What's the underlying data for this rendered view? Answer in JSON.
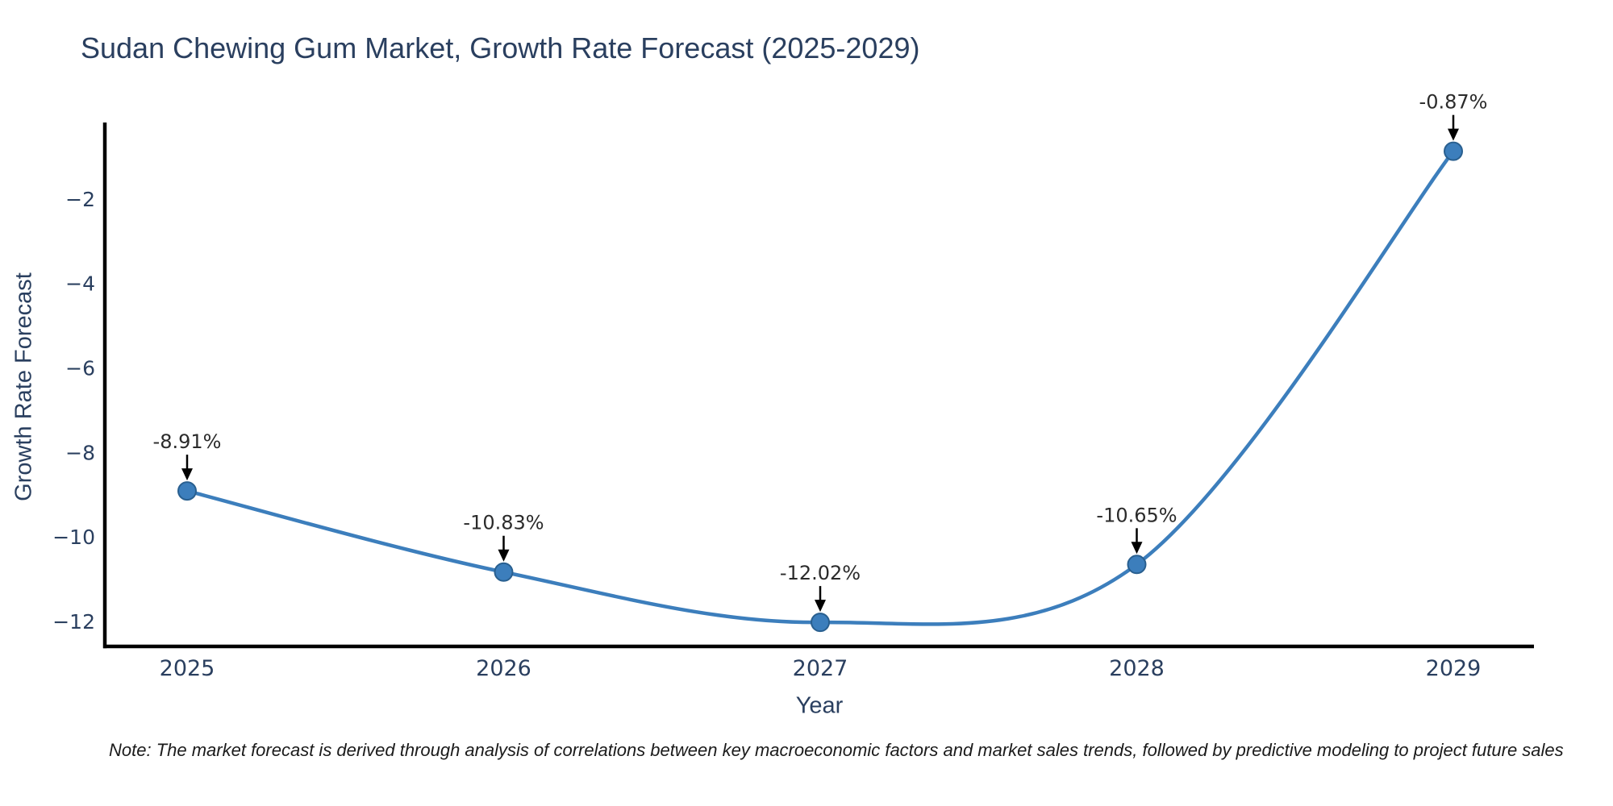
{
  "chart_data": {
    "type": "line",
    "title": "Sudan Chewing Gum Market, Growth Rate Forecast (2025-2029)",
    "xlabel": "Year",
    "ylabel": "Growth Rate Forecast",
    "x": [
      "2025",
      "2026",
      "2027",
      "2028",
      "2029"
    ],
    "series": [
      {
        "name": "Growth Rate Forecast",
        "values": [
          -8.91,
          -10.83,
          -12.02,
          -10.65,
          -0.87
        ]
      }
    ],
    "point_labels": [
      "-8.91%",
      "-10.83%",
      "-12.02%",
      "-10.65%",
      "-0.87%"
    ],
    "ytick_values": [
      -2,
      -4,
      -6,
      -8,
      -10,
      -12
    ],
    "ytick_labels": [
      "−2",
      "−4",
      "−6",
      "−8",
      "−10",
      "−12"
    ],
    "ylim": [
      -12.59,
      -0.19
    ],
    "line_shape": "spline",
    "markers": true,
    "grid": false,
    "legend_position": "none",
    "annotation_arrows": true,
    "colors": {
      "line": "#3C7EBC",
      "marker_fill": "#3C7EBC",
      "marker_edge": "#295F8F",
      "axis_spine": "#000000",
      "tick_text": "#2a3f5f",
      "annotation_text": "#2b2b2b",
      "arrow": "#000000",
      "background": "#ffffff"
    }
  },
  "footnote": {
    "text": "Note: The market forecast is derived through analysis of correlations between key macroeconomic factors and market sales trends, followed by predictive modeling to project future sales"
  }
}
